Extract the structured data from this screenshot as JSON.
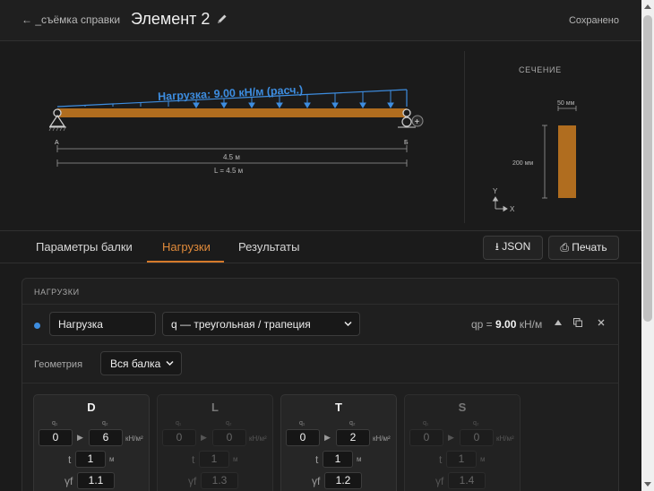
{
  "header": {
    "back_label": "← _съёмка справки",
    "title": "Элемент 2",
    "status": "Сохранено"
  },
  "diagram": {
    "load_label": "Нагрузка: 9.00 кН/м (расч.)",
    "support_a": "A",
    "support_b": "Б",
    "span_label": "4.5 м",
    "length_label": "L = 4.5 м",
    "add_symbol": "+",
    "colors": {
      "beam": "#b06d1f",
      "load": "#3d8de0"
    }
  },
  "section": {
    "title": "СЕЧЕНИЕ",
    "width_label": "50 мм",
    "height_label": "200 мм",
    "axis_y": "Y",
    "axis_x": "X"
  },
  "tabs": [
    {
      "label": "Параметры балки",
      "active": false
    },
    {
      "label": "Нагрузки",
      "active": true
    },
    {
      "label": "Результаты",
      "active": false
    }
  ],
  "toolbar": {
    "json_label": "⭳ JSON",
    "print_label": "⎙ Печать"
  },
  "loads_panel": {
    "title": "НАГРУЗКИ",
    "load": {
      "name": "Нагрузка",
      "type": "q — треугольная / трапеция",
      "qp_label": "qp =",
      "qp_value": "9.00",
      "qp_unit": "кН/м"
    },
    "geometry": {
      "label": "Геометрия",
      "value": "Вся балка"
    },
    "cards": [
      {
        "title": "D",
        "q1_label": "q₁",
        "q2_label": "q₂",
        "q1": "0",
        "q2": "6",
        "unit": "кН/м²",
        "t_label": "t",
        "t": "1",
        "t_unit": "м",
        "f_label": "γf",
        "f": "1.1",
        "enabled": true
      },
      {
        "title": "L",
        "q1_label": "q₁",
        "q2_label": "q₂",
        "q1": "0",
        "q2": "0",
        "unit": "кН/м²",
        "t_label": "t",
        "t": "1",
        "t_unit": "м",
        "f_label": "γf",
        "f": "1.3",
        "enabled": false
      },
      {
        "title": "T",
        "q1_label": "q₁",
        "q2_label": "q₂",
        "q1": "0",
        "q2": "2",
        "unit": "кН/м²",
        "t_label": "t",
        "t": "1",
        "t_unit": "м",
        "f_label": "γf",
        "f": "1.2",
        "enabled": true
      },
      {
        "title": "S",
        "q1_label": "q₁",
        "q2_label": "q₂",
        "q1": "0",
        "q2": "0",
        "unit": "кН/м²",
        "t_label": "t",
        "t": "1",
        "t_unit": "м",
        "f_label": "γf",
        "f": "1.4",
        "enabled": false
      }
    ]
  }
}
